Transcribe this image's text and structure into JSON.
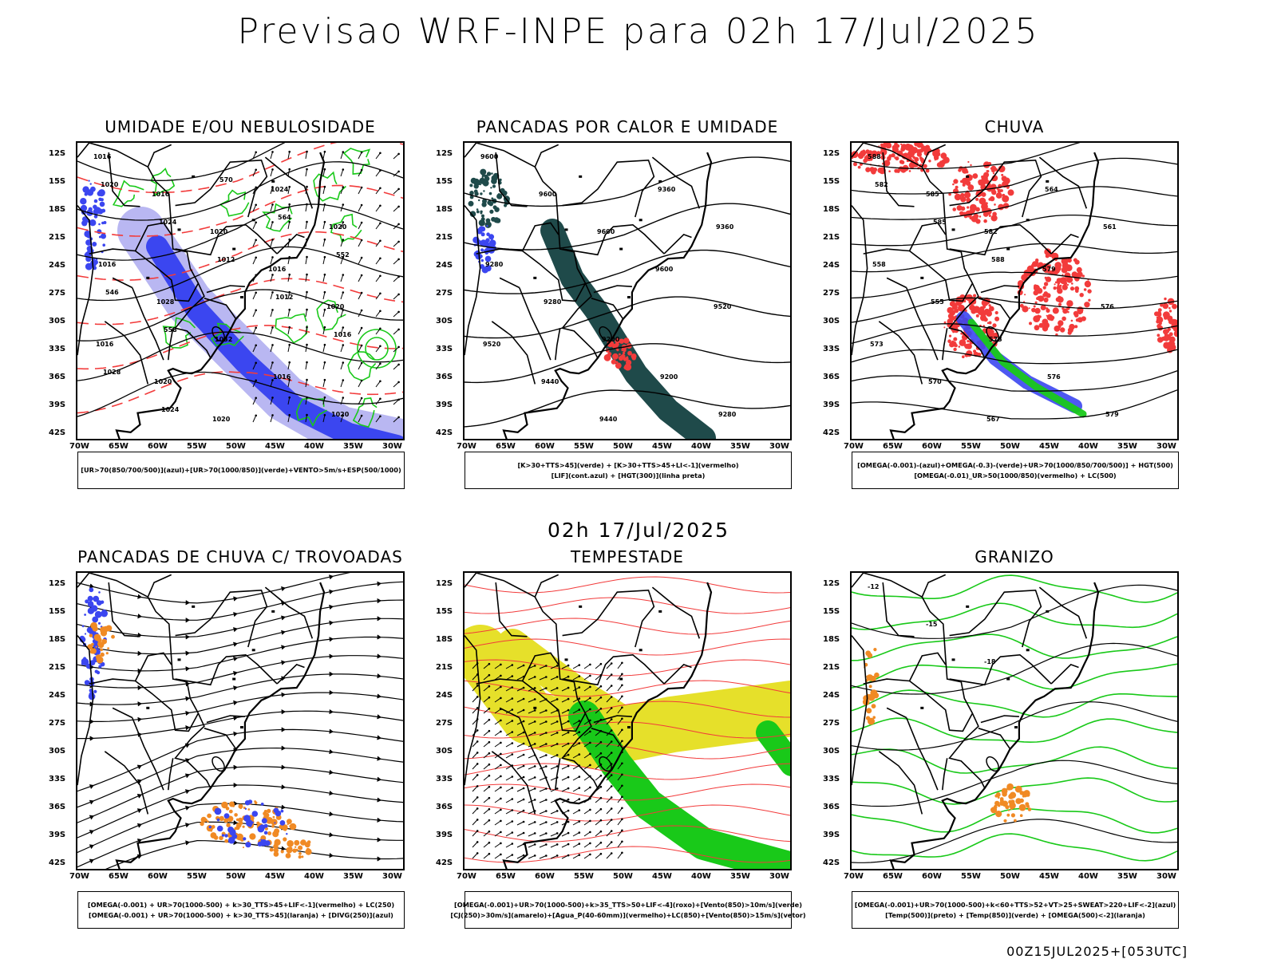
{
  "header": {
    "title": "Previsao WRF-INPE  para 02h 17/Jul/2025"
  },
  "middle_time": "02h 17/Jul/2025",
  "run_stamp": "00Z15JUL2025+[053UTC]",
  "axes": {
    "lat_labels": [
      "12S",
      "15S",
      "18S",
      "21S",
      "24S",
      "27S",
      "30S",
      "33S",
      "36S",
      "39S",
      "42S"
    ],
    "lon_labels": [
      "70W",
      "65W",
      "60W",
      "55W",
      "50W",
      "45W",
      "40W",
      "35W",
      "30W"
    ]
  },
  "colors": {
    "blue": "#3b46f0",
    "light_blue": "#b9b7f2",
    "green": "#19c919",
    "red": "#f23b3b",
    "dark_teal": "#1f4a4a",
    "orange": "#f08a24",
    "yellow": "#e6e02a",
    "black": "#000000"
  },
  "panels": [
    {
      "title": "UMIDADE E/OU NEBULOSIDADE",
      "legend": [
        "[UR>70(850/700/500)](azul)+[UR>70(1000/850)](verde)+VENTO>5m/s+ESP(500/1000)"
      ],
      "contour_labels": [
        "1016",
        "1016",
        "1020",
        "1016",
        "1020",
        "1016",
        "1020",
        "1020",
        "1024",
        "1020",
        "1016",
        "1028",
        "1032",
        "1016",
        "1020",
        "1020",
        "1024",
        "1012",
        "1012",
        "1016",
        "1028",
        "1024",
        "570",
        "564",
        "552",
        "546",
        "558"
      ]
    },
    {
      "title": "PANCADAS POR CALOR E UMIDADE",
      "legend": [
        "[K>30+TTS>45](verde) + [K>30+TTS>45+LI<-1](vermelho)",
        "[LIF](cont.azul) + [HGT(300)](linha preta)"
      ],
      "contour_labels": [
        "9600",
        "9600",
        "9600",
        "9600",
        "9520",
        "9520",
        "9440",
        "9440",
        "9360",
        "9360",
        "9280",
        "9280",
        "9200",
        "9200",
        "9280"
      ]
    },
    {
      "title": "CHUVA",
      "legend": [
        "[OMEGA(-0.001)-(azul)+OMEGA(-0.3)-(verde)+UR>70(1000/850/700/500)] + HGT(500)",
        "[OMEGA(-0.01)_UR>50(1000/850)(vermelho) + LC(500)"
      ],
      "contour_labels": [
        "588",
        "585",
        "582",
        "579",
        "576",
        "573",
        "570",
        "567",
        "564",
        "561",
        "558",
        "555",
        "573",
        "576",
        "579",
        "582",
        "585",
        "588"
      ]
    },
    {
      "title": "PANCADAS DE CHUVA C/ TROVOADAS",
      "legend": [
        "[OMEGA(-0.001) + UR>70(1000-500) + k>30_TTS>45+LIF<-1](vermelho) + LC(250)",
        "[OMEGA(-0.001) + UR>70(1000-500) + k>30_TTS>45](laranja) + [DIVG(250)](azul)"
      ],
      "contour_labels": []
    },
    {
      "title": "TEMPESTADE",
      "legend": [
        "[OMEGA(-0.001)+UR>70(1000-500)+k>35_TTS>50+LIF<-4](roxo)+[Vento(850)>10m/s](verde)",
        "[CJ(250)>30m/s](amarelo)+[Agua_P(40-60mm)](vermelho)+LC(850)+[Vento(850)>15m/s](vetor)"
      ],
      "contour_labels": []
    },
    {
      "title": "GRANIZO",
      "legend": [
        "[OMEGA(-0.001)+UR>70(1000-500)+k<60+TTS>52+VT>25+SWEAT>220+LIF<-2](azul)",
        "[Temp(500)](preto) + [Temp(850)](verde) + [OMEGA(500)<-2](laranja)"
      ],
      "contour_labels": [
        "-12",
        "-15",
        "-18"
      ]
    }
  ]
}
